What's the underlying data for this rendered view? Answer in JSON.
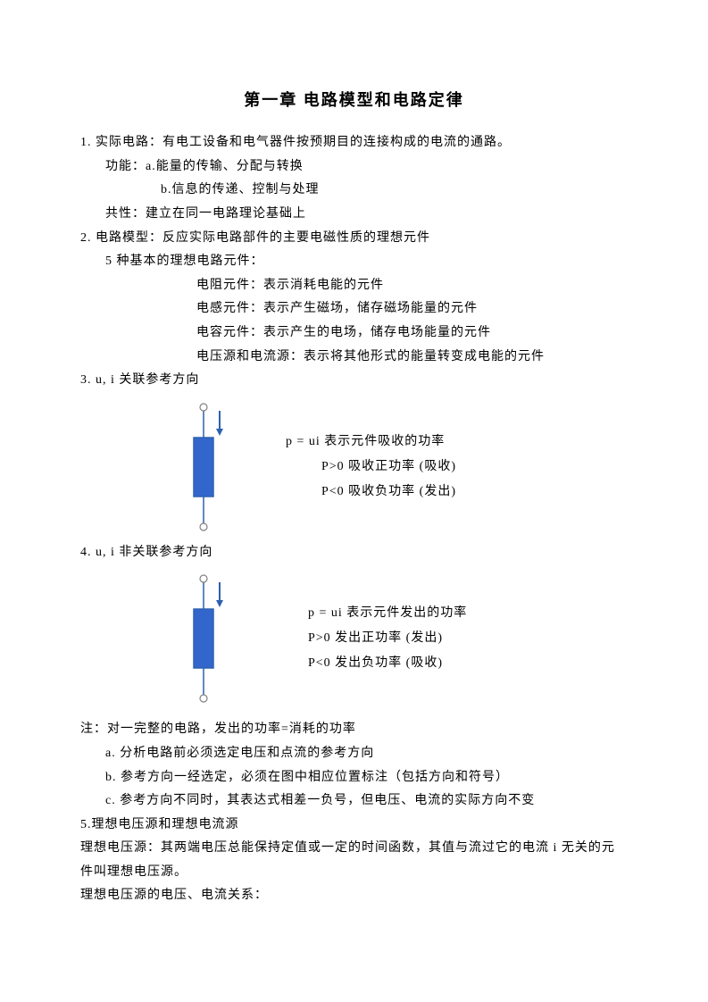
{
  "title": "第一章  电路模型和电路定律",
  "item1": {
    "heading": "1.  实际电路：有电工设备和电气器件按预期目的连接构成的电流的通路。",
    "fn_label": "功能：a.能量的传输、分配与转换",
    "fn_b": "b.信息的传递、控制与处理",
    "common": "共性：建立在同一电路理论基础上"
  },
  "item2": {
    "heading": "2.  电路模型：反应实际电路部件的主要电磁性质的理想元件",
    "sub": "5 种基本的理想电路元件：",
    "r": "电阻元件：表示消耗电能的元件",
    "l": "电感元件：表示产生磁场，储存磁场能量的元件",
    "c": "电容元件：表示产生的电场，储存电场能量的元件",
    "src": "电压源和电流源：表示将其他形式的能量转变成电能的元件"
  },
  "item3": {
    "heading": "3.  u, i  关联参考方向",
    "p1": "p = ui    表示元件吸收的功率",
    "p2": "P>0    吸收正功率      (吸收)",
    "p3": "P<0    吸收负功率      (发出)"
  },
  "item4": {
    "heading": "4.  u, i  非关联参考方向",
    "p1": "p = ui    表示元件发出的功率",
    "p2": "P>0    发出正功率      (发出)",
    "p3": "P<0    发出负功率      (吸收)"
  },
  "notes": {
    "n0": "注：对一完整的电路，发出的功率=消耗的功率",
    "na": "a.  分析电路前必须选定电压和点流的参考方向",
    "nb": "b.  参考方向一经选定，必须在图中相应位置标注（包括方向和符号）",
    "nc": "c.  参考方向不同时，其表达式相差一负号，但电压、电流的实际方向不变"
  },
  "item5": {
    "heading": "5.理想电压源和理想电流源",
    "def": "理想电压源：其两端电压总能保持定值或一定的时间函数，其值与流过它的电流 i 无关的元件叫理想电压源。",
    "rel": "理想电压源的电压、电流关系："
  },
  "diagram": {
    "stroke": "#2e60b0",
    "fill": "#3366cc",
    "arrow": "#2e60b0",
    "circle_stroke": "#808080",
    "width": 50,
    "height": 150
  }
}
